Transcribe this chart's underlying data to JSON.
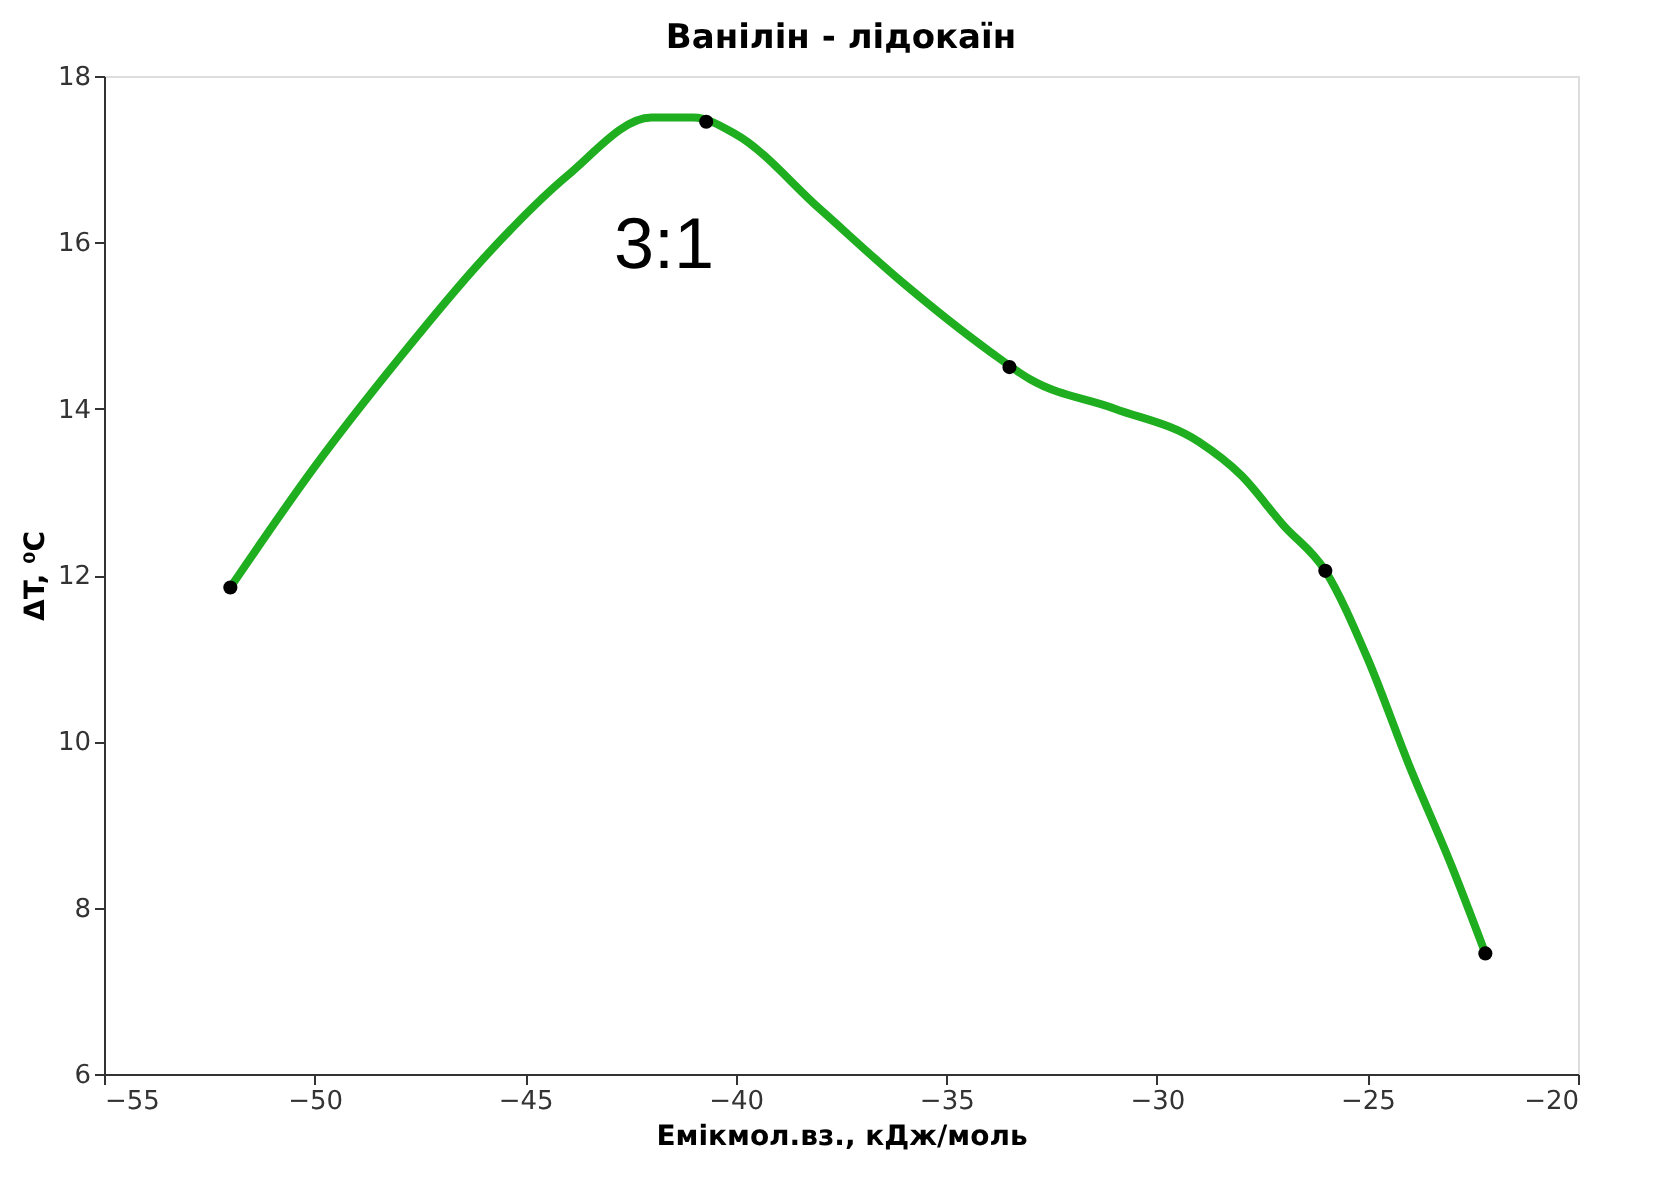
{
  "chart_data": {
    "type": "line",
    "title": "Ванілін - лідокаїн",
    "xlabel": "Eмікмол.вз., кДж/моль",
    "ylabel": "ΔT, ⁰C",
    "xlim": [
      -55,
      -20
    ],
    "xticks": [
      -55,
      -50,
      -45,
      -40,
      -35,
      -30,
      -25,
      -20
    ],
    "ylim": [
      6,
      18
    ],
    "yticks": [
      6,
      8,
      10,
      12,
      14,
      16,
      18
    ],
    "grid": false,
    "series": [
      {
        "type": "line",
        "color": "#1fae1f",
        "marker": "none",
        "line_style": "solid",
        "x": [
          -52,
          -50,
          -48,
          -46,
          -44,
          -42,
          -41,
          -40,
          -38,
          -36,
          -34,
          -33,
          -31,
          -29,
          -28,
          -27,
          -26,
          -25,
          -24,
          -23,
          -22.2
        ],
        "values": [
          11.85,
          13.3,
          14.6,
          15.8,
          16.8,
          17.5,
          17.5,
          17.3,
          16.4,
          15.5,
          14.7,
          14.35,
          14.0,
          13.6,
          13.2,
          12.6,
          12.05,
          11.0,
          9.7,
          8.5,
          7.45
        ]
      },
      {
        "type": "scatter",
        "color": "#000000",
        "marker": "circle",
        "x": [
          -52,
          -40.7,
          -33.5,
          -26,
          -22.2
        ],
        "values": [
          11.85,
          17.45,
          14.5,
          12.05,
          7.45
        ]
      }
    ],
    "annotations": [
      "3:1"
    ]
  }
}
